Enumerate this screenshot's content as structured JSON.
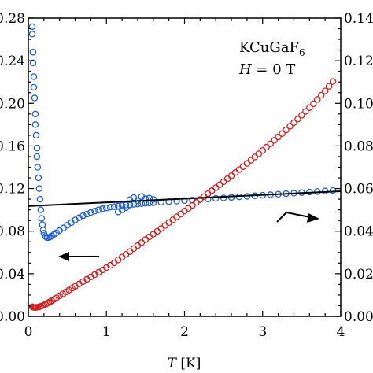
{
  "chart_data": {
    "type": "scatter",
    "title": "",
    "xlabel": "T [K]",
    "xlabel_italic_part": "T",
    "xlabel_unit": "[K]",
    "xlim": [
      0,
      4
    ],
    "xticks": [
      0,
      1,
      2,
      3,
      4
    ],
    "ylim_left": [
      0,
      0.28
    ],
    "yticks_left": [
      0.0,
      0.04,
      0.08,
      0.12,
      0.16,
      0.2,
      0.24,
      0.28
    ],
    "ytick_labels_left": [
      "0.00",
      "0.04",
      "0.08",
      "0.12",
      "0.16",
      "0.20",
      "0.24",
      "0.28"
    ],
    "ylim_right": [
      0,
      0.14
    ],
    "yticks_right": [
      0.0,
      0.02,
      0.04,
      0.06,
      0.08,
      0.1,
      0.12,
      0.14
    ],
    "ytick_labels_right": [
      "0.00",
      "0.02",
      "0.04",
      "0.06",
      "0.08",
      "0.10",
      "0.12",
      "0.14"
    ],
    "grid": false,
    "annotation": {
      "compound": "KCuGaF",
      "compound_subscript": "6",
      "field_symbol": "H",
      "field_value": " = 0 T"
    },
    "fit_line": {
      "axis": "left",
      "x": [
        0,
        4
      ],
      "y": [
        0.1035,
        0.1175
      ],
      "color": "#000000"
    },
    "arrows": [
      {
        "points_to": "left",
        "series": "blue"
      },
      {
        "points_to": "right",
        "series": "red"
      }
    ],
    "series": [
      {
        "color": "#1f5fd6",
        "axis": "left",
        "marker": "open-circle",
        "points": [
          [
            0.05,
            0.272
          ],
          [
            0.05,
            0.265
          ],
          [
            0.06,
            0.248
          ],
          [
            0.06,
            0.238
          ],
          [
            0.07,
            0.225
          ],
          [
            0.07,
            0.215
          ],
          [
            0.08,
            0.205
          ],
          [
            0.09,
            0.19
          ],
          [
            0.09,
            0.18
          ],
          [
            0.1,
            0.17
          ],
          [
            0.11,
            0.158
          ],
          [
            0.11,
            0.15
          ],
          [
            0.12,
            0.14
          ],
          [
            0.13,
            0.13
          ],
          [
            0.14,
            0.12
          ],
          [
            0.15,
            0.11
          ],
          [
            0.16,
            0.1
          ],
          [
            0.17,
            0.092
          ],
          [
            0.18,
            0.086
          ],
          [
            0.19,
            0.081
          ],
          [
            0.2,
            0.078
          ],
          [
            0.22,
            0.075
          ],
          [
            0.24,
            0.074
          ],
          [
            0.26,
            0.074
          ],
          [
            0.28,
            0.0745
          ],
          [
            0.3,
            0.0755
          ],
          [
            0.33,
            0.077
          ],
          [
            0.36,
            0.0785
          ],
          [
            0.4,
            0.0805
          ],
          [
            0.45,
            0.083
          ],
          [
            0.5,
            0.0855
          ],
          [
            0.55,
            0.088
          ],
          [
            0.6,
            0.0905
          ],
          [
            0.65,
            0.0925
          ],
          [
            0.7,
            0.0945
          ],
          [
            0.75,
            0.096
          ],
          [
            0.8,
            0.0975
          ],
          [
            0.85,
            0.0988
          ],
          [
            0.9,
            0.1
          ],
          [
            0.95,
            0.101
          ],
          [
            1.0,
            0.1018
          ],
          [
            1.05,
            0.1025
          ],
          [
            1.1,
            0.103
          ],
          [
            1.15,
            0.1035
          ],
          [
            1.2,
            0.104
          ],
          [
            1.25,
            0.1045
          ],
          [
            1.3,
            0.1048
          ],
          [
            1.35,
            0.1052
          ],
          [
            1.4,
            0.1055
          ],
          [
            1.45,
            0.1058
          ],
          [
            1.5,
            0.1062
          ],
          [
            1.55,
            0.1065
          ],
          [
            1.6,
            0.1067
          ],
          [
            1.7,
            0.1072
          ],
          [
            1.8,
            0.1077
          ],
          [
            1.9,
            0.1082
          ],
          [
            2.0,
            0.1087
          ],
          [
            2.1,
            0.1092
          ],
          [
            2.2,
            0.1097
          ],
          [
            2.3,
            0.1102
          ],
          [
            2.4,
            0.1107
          ],
          [
            2.5,
            0.1112
          ],
          [
            2.6,
            0.1117
          ],
          [
            2.7,
            0.1122
          ],
          [
            2.8,
            0.1127
          ],
          [
            2.9,
            0.1132
          ],
          [
            3.0,
            0.1137
          ],
          [
            3.1,
            0.1142
          ],
          [
            3.2,
            0.1147
          ],
          [
            3.3,
            0.1152
          ],
          [
            3.4,
            0.1157
          ],
          [
            3.5,
            0.1162
          ],
          [
            3.6,
            0.1167
          ],
          [
            3.7,
            0.1172
          ],
          [
            3.8,
            0.1177
          ],
          [
            3.9,
            0.1182
          ],
          [
            1.15,
            0.098
          ],
          [
            1.2,
            0.1
          ],
          [
            1.25,
            0.102
          ],
          [
            1.3,
            0.1045
          ],
          [
            1.3,
            0.1095
          ],
          [
            1.35,
            0.1115
          ],
          [
            1.4,
            0.1085
          ],
          [
            1.45,
            0.1125
          ],
          [
            1.5,
            0.1105
          ],
          [
            1.55,
            0.111
          ],
          [
            1.6,
            0.1098
          ]
        ]
      },
      {
        "color": "#d62020",
        "axis": "right",
        "marker": "open-circle",
        "points": [
          [
            0.05,
            0.0045
          ],
          [
            0.06,
            0.0043
          ],
          [
            0.07,
            0.0042
          ],
          [
            0.08,
            0.0042
          ],
          [
            0.09,
            0.0042
          ],
          [
            0.1,
            0.0042
          ],
          [
            0.12,
            0.0043
          ],
          [
            0.14,
            0.0045
          ],
          [
            0.16,
            0.0047
          ],
          [
            0.18,
            0.005
          ],
          [
            0.2,
            0.0053
          ],
          [
            0.22,
            0.0057
          ],
          [
            0.24,
            0.0061
          ],
          [
            0.26,
            0.0065
          ],
          [
            0.28,
            0.0069
          ],
          [
            0.3,
            0.0073
          ],
          [
            0.33,
            0.008
          ],
          [
            0.36,
            0.0087
          ],
          [
            0.4,
            0.0096
          ],
          [
            0.44,
            0.0105
          ],
          [
            0.48,
            0.0114
          ],
          [
            0.52,
            0.0123
          ],
          [
            0.56,
            0.0132
          ],
          [
            0.6,
            0.0141
          ],
          [
            0.65,
            0.0152
          ],
          [
            0.7,
            0.0163
          ],
          [
            0.75,
            0.0174
          ],
          [
            0.8,
            0.0185
          ],
          [
            0.85,
            0.0196
          ],
          [
            0.9,
            0.0207
          ],
          [
            0.95,
            0.0218
          ],
          [
            1.0,
            0.0229
          ],
          [
            1.05,
            0.024
          ],
          [
            1.1,
            0.0251
          ],
          [
            1.15,
            0.0265
          ],
          [
            1.2,
            0.0278
          ],
          [
            1.25,
            0.0291
          ],
          [
            1.3,
            0.0304
          ],
          [
            1.35,
            0.0318
          ],
          [
            1.4,
            0.0332
          ],
          [
            1.45,
            0.0346
          ],
          [
            1.5,
            0.036
          ],
          [
            1.55,
            0.0373
          ],
          [
            1.6,
            0.0386
          ],
          [
            1.65,
            0.0399
          ],
          [
            1.7,
            0.0412
          ],
          [
            1.75,
            0.0426
          ],
          [
            1.8,
            0.044
          ],
          [
            1.85,
            0.0453
          ],
          [
            1.9,
            0.0467
          ],
          [
            1.95,
            0.048
          ],
          [
            2.0,
            0.0494
          ],
          [
            2.05,
            0.0507
          ],
          [
            2.1,
            0.0521
          ],
          [
            2.15,
            0.0535
          ],
          [
            2.2,
            0.0548
          ],
          [
            2.25,
            0.0562
          ],
          [
            2.3,
            0.0576
          ],
          [
            2.35,
            0.059
          ],
          [
            2.4,
            0.0604
          ],
          [
            2.45,
            0.0618
          ],
          [
            2.5,
            0.0632
          ],
          [
            2.55,
            0.0646
          ],
          [
            2.6,
            0.066
          ],
          [
            2.65,
            0.0675
          ],
          [
            2.7,
            0.0689
          ],
          [
            2.75,
            0.0703
          ],
          [
            2.8,
            0.0718
          ],
          [
            2.85,
            0.0733
          ],
          [
            2.9,
            0.0748
          ],
          [
            2.95,
            0.0763
          ],
          [
            3.0,
            0.0778
          ],
          [
            3.05,
            0.0794
          ],
          [
            3.1,
            0.081
          ],
          [
            3.15,
            0.0826
          ],
          [
            3.2,
            0.0842
          ],
          [
            3.25,
            0.0858
          ],
          [
            3.3,
            0.0875
          ],
          [
            3.35,
            0.0892
          ],
          [
            3.4,
            0.0909
          ],
          [
            3.45,
            0.0926
          ],
          [
            3.5,
            0.0944
          ],
          [
            3.55,
            0.0962
          ],
          [
            3.6,
            0.098
          ],
          [
            3.65,
            0.0998
          ],
          [
            3.7,
            0.1018
          ],
          [
            3.75,
            0.1038
          ],
          [
            3.8,
            0.1058
          ],
          [
            3.85,
            0.108
          ],
          [
            3.9,
            0.1102
          ]
        ]
      }
    ]
  }
}
